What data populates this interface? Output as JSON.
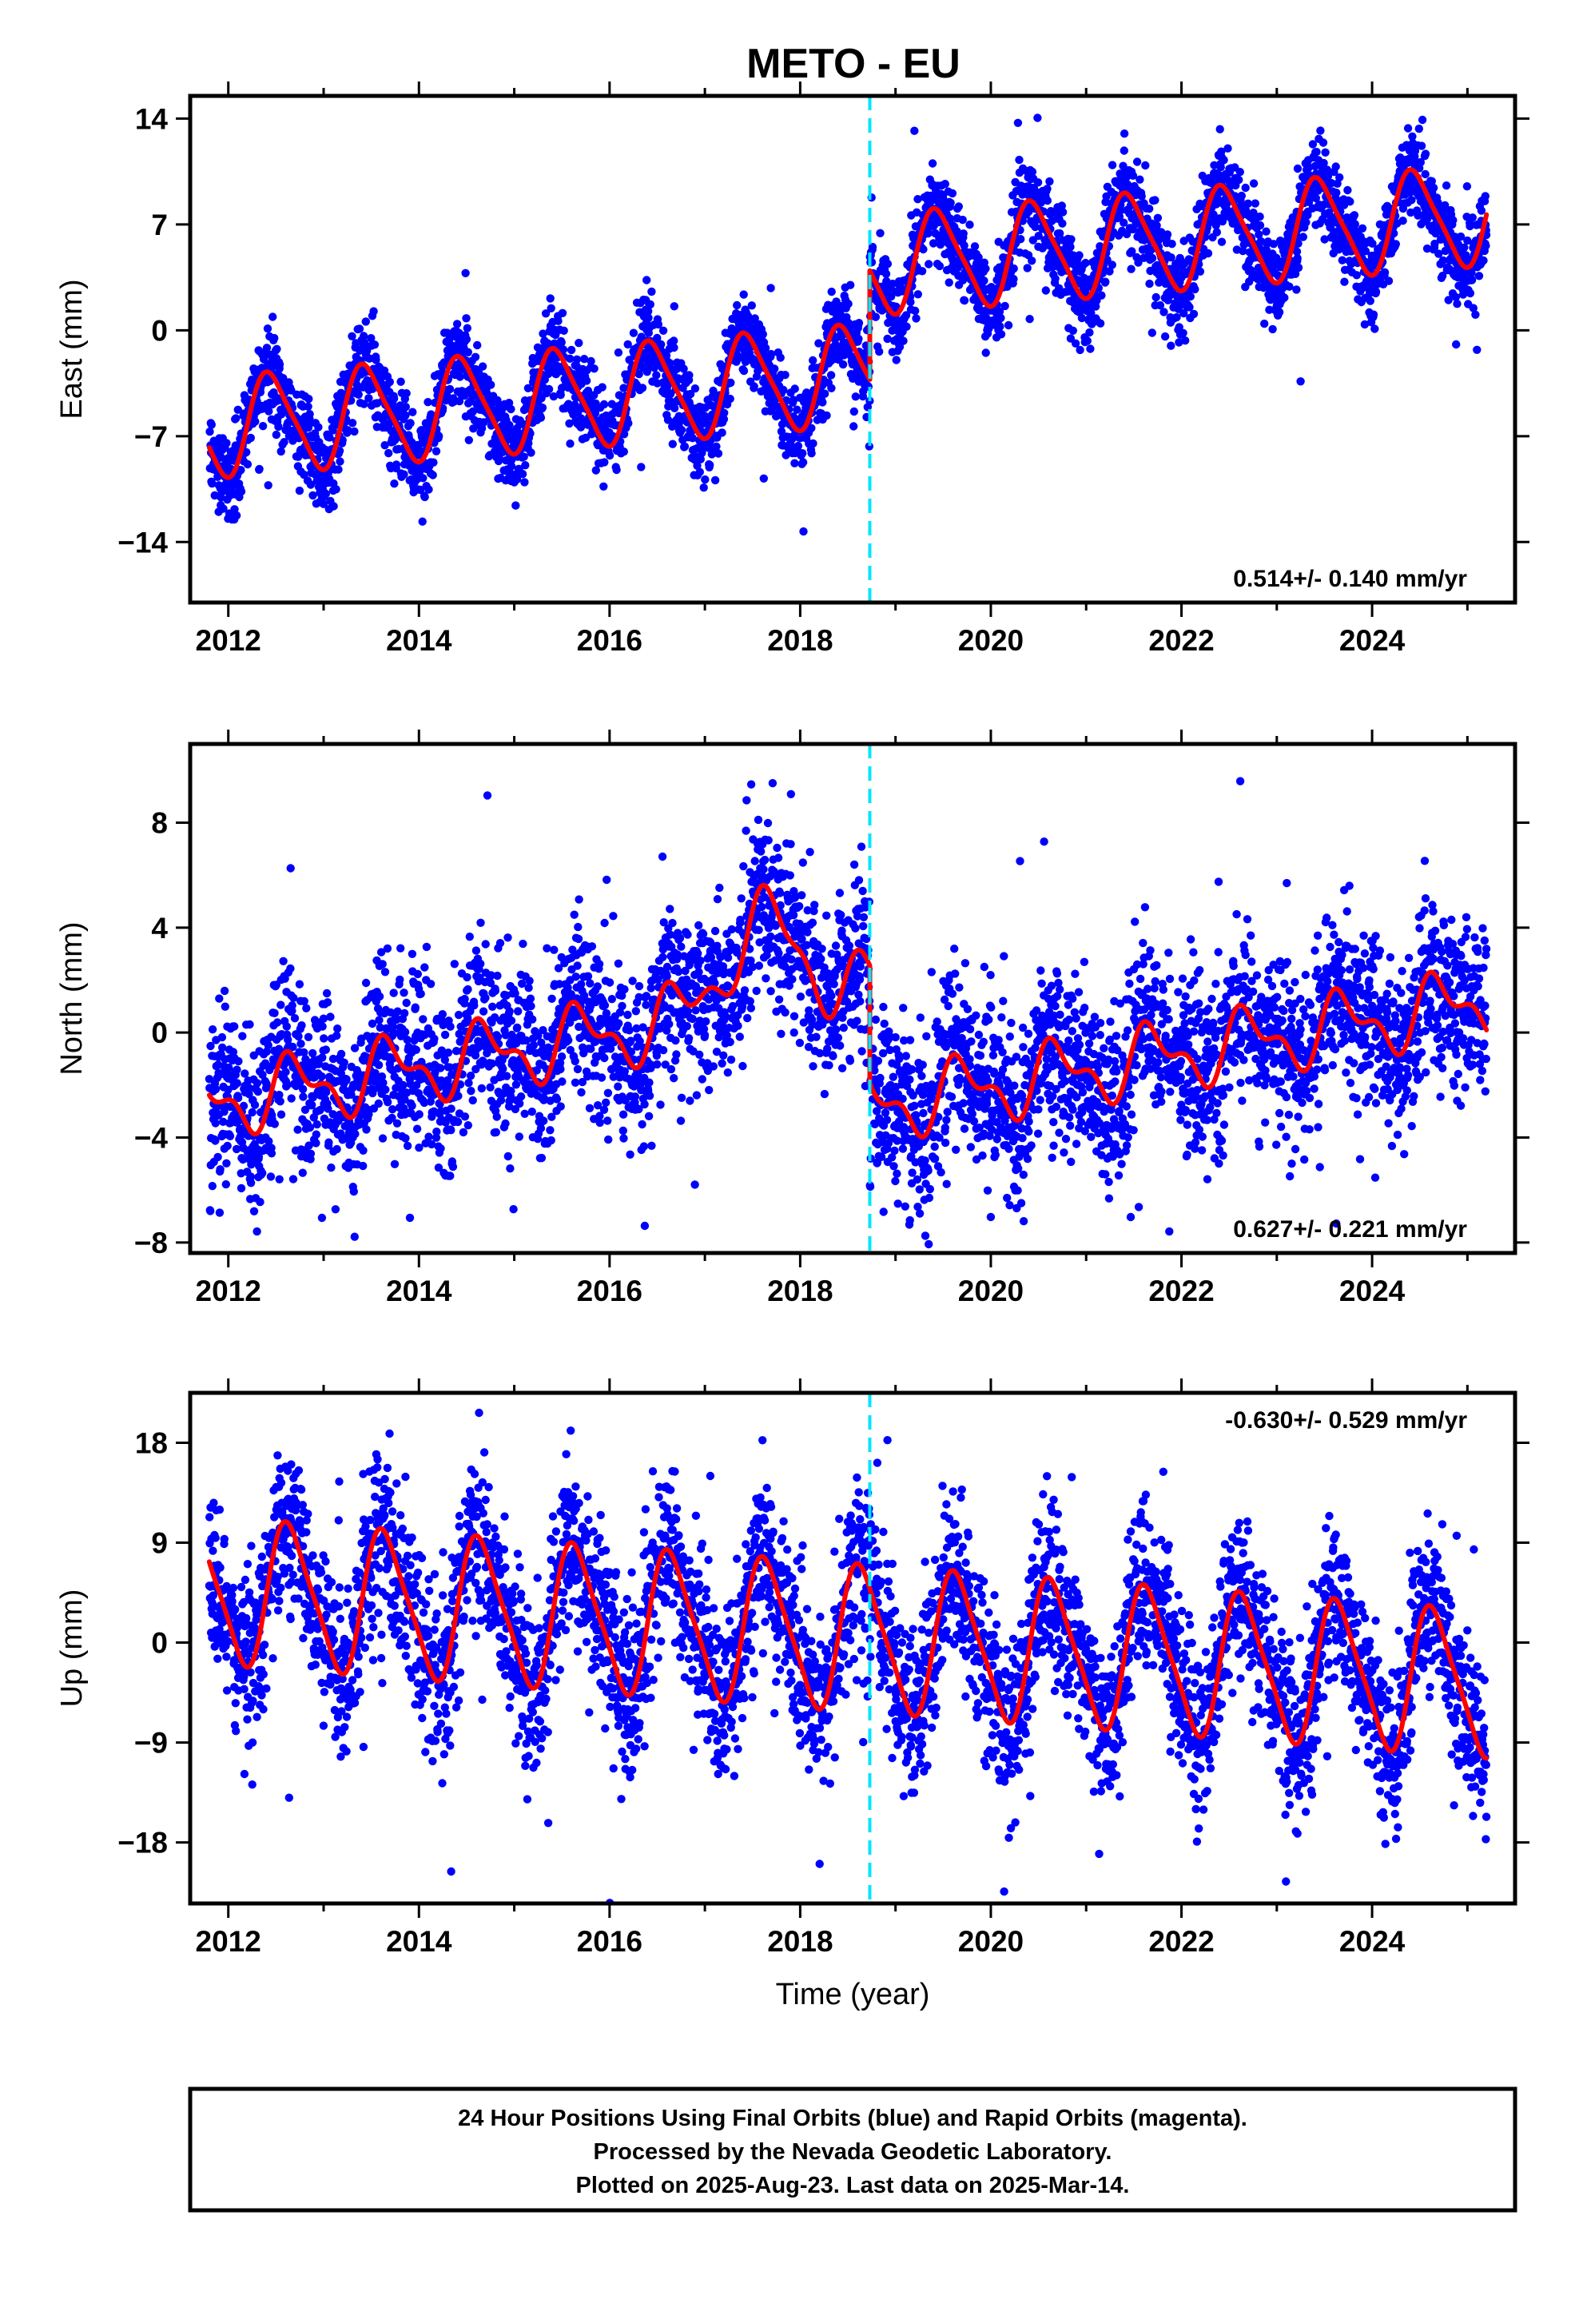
{
  "caption_lines": [
    "24 Hour Positions Using Final Orbits (blue) and Rapid Orbits (magenta).",
    "Processed by the Nevada Geodetic Laboratory.",
    "Plotted on 2025-Aug-23. Last data on 2025-Mar-14."
  ],
  "colors": {
    "points": "#0000ff",
    "model": "#ff0000",
    "offset_line": "#00e5ff",
    "frame": "#000000"
  },
  "chart_data": [
    {
      "type": "scatter",
      "title": "METO - EU",
      "ylabel": "East (mm)",
      "xlabel": "",
      "xlim": [
        2011.6,
        2025.5
      ],
      "ylim": [
        -18,
        15.5
      ],
      "x_ticks": [
        2012,
        2014,
        2016,
        2018,
        2020,
        2022,
        2024
      ],
      "y_ticks": [
        14,
        7,
        0,
        -7,
        -14
      ],
      "rate_text": "0.514+/- 0.140 mm/yr",
      "rate_position": "bottom-right",
      "offset_epoch": 2018.73,
      "model": {
        "x_start": 2011.8,
        "x_end": 2025.2,
        "epoch": 2018.5,
        "intercept": -3.0,
        "rate": 0.514,
        "step_at": 2018.73,
        "step": 7.2,
        "annual_amplitude": 3.2,
        "annual_phase": 0.2,
        "semiannual_amplitude": 0.6,
        "scatter_sigma": 1.4
      }
    },
    {
      "type": "scatter",
      "title": "",
      "ylabel": "North (mm)",
      "xlabel": "",
      "xlim": [
        2011.6,
        2025.5
      ],
      "ylim": [
        -8.4,
        11
      ],
      "x_ticks": [
        2012,
        2014,
        2016,
        2018,
        2020,
        2022,
        2024
      ],
      "y_ticks": [
        8,
        4,
        0,
        -4,
        -8
      ],
      "rate_text": "0.627+/- 0.221 mm/yr",
      "rate_position": "bottom-right",
      "offset_epoch": 2018.73,
      "model": {
        "x_start": 2011.8,
        "x_end": 2025.2,
        "epoch": 2018.5,
        "intercept": 1.5,
        "rate": 0.627,
        "step_at": 2018.73,
        "step": -4.5,
        "annual_amplitude": 1.1,
        "annual_phase": 0.45,
        "semiannual_amplitude": 0.6,
        "scatter_sigma": 1.6,
        "bumps": [
          {
            "center": 2017.6,
            "width": 0.55,
            "height": 3.2
          }
        ]
      }
    },
    {
      "type": "scatter",
      "title": "",
      "ylabel": "Up (mm)",
      "xlabel": "Time (year)",
      "xlim": [
        2011.6,
        2025.5
      ],
      "ylim": [
        -23.5,
        22.5
      ],
      "x_ticks": [
        2012,
        2014,
        2016,
        2018,
        2020,
        2022,
        2024
      ],
      "y_ticks": [
        18,
        9,
        0,
        -9,
        -18
      ],
      "rate_text": "-0.630+/- 0.529 mm/yr",
      "rate_position": "top-right",
      "offset_epoch": 2018.73,
      "model": {
        "x_start": 2011.8,
        "x_end": 2025.2,
        "epoch": 2018.5,
        "intercept": 0.5,
        "rate": -0.63,
        "step_at": 2018.73,
        "step": 0.0,
        "annual_amplitude": 6.3,
        "annual_phase": 0.4,
        "semiannual_amplitude": 1.2,
        "scatter_sigma": 3.8
      }
    }
  ]
}
